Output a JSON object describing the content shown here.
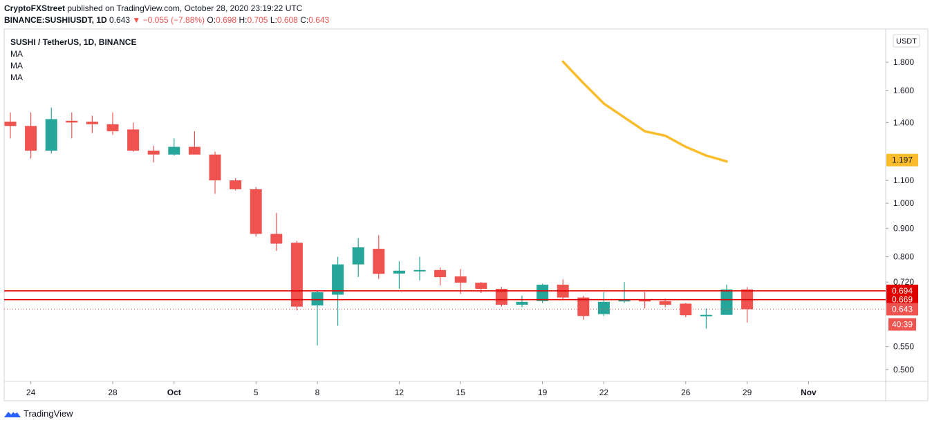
{
  "header": {
    "publisher": "CryptoFXStreet",
    "published_text": "published on TradingView.com, October 28, 2020 23:19:22 UTC",
    "symbol": "BINANCE:SUSHIUSDT, 1D",
    "last": "0.643",
    "arrow": "▼",
    "change": "−0.055 (−7.88%)",
    "o_label": "O:",
    "o_value": "0.698",
    "h_label": "H:",
    "h_value": "0.705",
    "l_label": "L:",
    "l_value": "0.608",
    "c_label": "C:",
    "c_value": "0.643"
  },
  "legend": {
    "title": "SUSHI / TetherUS, 1D, BINANCE",
    "indicators": [
      "MA",
      "MA",
      "MA"
    ]
  },
  "axis": {
    "currency_button": "USDT",
    "countdown": "40:39"
  },
  "footer": {
    "brand": "TradingView"
  },
  "colors": {
    "up": "#26a69a",
    "down": "#ef5350",
    "ma": "#fbbc2c",
    "resistance": "#e00000"
  },
  "chart_data": {
    "type": "candlestick",
    "y_scale": "log",
    "ylim": [
      0.48,
      2.02
    ],
    "y_ticks": [
      0.5,
      0.55,
      0.72,
      0.8,
      0.9,
      1.0,
      1.1,
      1.4,
      1.6,
      1.8
    ],
    "y_tick_labels": [
      "0.500",
      "0.550",
      "0.720",
      "0.800",
      "0.900",
      "1.000",
      "1.100",
      "1.400",
      "1.600",
      "1.800"
    ],
    "x_ticks": [
      {
        "date": "2020-09-24",
        "label": "24"
      },
      {
        "date": "2020-09-28",
        "label": "28"
      },
      {
        "date": "2020-10-01",
        "label": "Oct"
      },
      {
        "date": "2020-10-05",
        "label": "5"
      },
      {
        "date": "2020-10-08",
        "label": "8"
      },
      {
        "date": "2020-10-12",
        "label": "12"
      },
      {
        "date": "2020-10-15",
        "label": "15"
      },
      {
        "date": "2020-10-19",
        "label": "19"
      },
      {
        "date": "2020-10-22",
        "label": "22"
      },
      {
        "date": "2020-10-26",
        "label": "26"
      },
      {
        "date": "2020-10-29",
        "label": "29"
      },
      {
        "date": "2020-11-01",
        "label": "Nov"
      }
    ],
    "candles": [
      {
        "date": "2020-09-23",
        "o": 1.405,
        "h": 1.46,
        "l": 1.31,
        "c": 1.38
      },
      {
        "date": "2020-09-24",
        "o": 1.38,
        "h": 1.46,
        "l": 1.205,
        "c": 1.245
      },
      {
        "date": "2020-09-25",
        "o": 1.245,
        "h": 1.49,
        "l": 1.23,
        "c": 1.42
      },
      {
        "date": "2020-09-26",
        "o": 1.41,
        "h": 1.46,
        "l": 1.31,
        "c": 1.4
      },
      {
        "date": "2020-09-27",
        "o": 1.405,
        "h": 1.44,
        "l": 1.34,
        "c": 1.39
      },
      {
        "date": "2020-09-28",
        "o": 1.39,
        "h": 1.46,
        "l": 1.33,
        "c": 1.35
      },
      {
        "date": "2020-09-29",
        "o": 1.36,
        "h": 1.4,
        "l": 1.24,
        "c": 1.245
      },
      {
        "date": "2020-09-30",
        "o": 1.245,
        "h": 1.27,
        "l": 1.185,
        "c": 1.225
      },
      {
        "date": "2020-10-01",
        "o": 1.225,
        "h": 1.31,
        "l": 1.22,
        "c": 1.265
      },
      {
        "date": "2020-10-02",
        "o": 1.265,
        "h": 1.35,
        "l": 1.225,
        "c": 1.225
      },
      {
        "date": "2020-10-03",
        "o": 1.225,
        "h": 1.24,
        "l": 1.04,
        "c": 1.1
      },
      {
        "date": "2020-10-04",
        "o": 1.1,
        "h": 1.11,
        "l": 1.055,
        "c": 1.06
      },
      {
        "date": "2020-10-05",
        "o": 1.06,
        "h": 1.07,
        "l": 0.87,
        "c": 0.88
      },
      {
        "date": "2020-10-06",
        "o": 0.88,
        "h": 0.96,
        "l": 0.82,
        "c": 0.845
      },
      {
        "date": "2020-10-07",
        "o": 0.848,
        "h": 0.855,
        "l": 0.64,
        "c": 0.65
      },
      {
        "date": "2020-10-08",
        "o": 0.653,
        "h": 0.695,
        "l": 0.553,
        "c": 0.69
      },
      {
        "date": "2020-10-09",
        "o": 0.683,
        "h": 0.8,
        "l": 0.6,
        "c": 0.775
      },
      {
        "date": "2020-10-10",
        "o": 0.775,
        "h": 0.865,
        "l": 0.735,
        "c": 0.832
      },
      {
        "date": "2020-10-11",
        "o": 0.827,
        "h": 0.875,
        "l": 0.73,
        "c": 0.745
      },
      {
        "date": "2020-10-12",
        "o": 0.746,
        "h": 0.785,
        "l": 0.7,
        "c": 0.755
      },
      {
        "date": "2020-10-13",
        "o": 0.755,
        "h": 0.8,
        "l": 0.725,
        "c": 0.757
      },
      {
        "date": "2020-10-14",
        "o": 0.757,
        "h": 0.765,
        "l": 0.71,
        "c": 0.735
      },
      {
        "date": "2020-10-15",
        "o": 0.737,
        "h": 0.76,
        "l": 0.685,
        "c": 0.718
      },
      {
        "date": "2020-10-16",
        "o": 0.718,
        "h": 0.72,
        "l": 0.688,
        "c": 0.7
      },
      {
        "date": "2020-10-17",
        "o": 0.7,
        "h": 0.705,
        "l": 0.65,
        "c": 0.655
      },
      {
        "date": "2020-10-18",
        "o": 0.655,
        "h": 0.68,
        "l": 0.648,
        "c": 0.663
      },
      {
        "date": "2020-10-19",
        "o": 0.665,
        "h": 0.715,
        "l": 0.66,
        "c": 0.712
      },
      {
        "date": "2020-10-20",
        "o": 0.712,
        "h": 0.728,
        "l": 0.67,
        "c": 0.675
      },
      {
        "date": "2020-10-21",
        "o": 0.675,
        "h": 0.68,
        "l": 0.615,
        "c": 0.625
      },
      {
        "date": "2020-10-22",
        "o": 0.63,
        "h": 0.69,
        "l": 0.625,
        "c": 0.663
      },
      {
        "date": "2020-10-23",
        "o": 0.665,
        "h": 0.72,
        "l": 0.66,
        "c": 0.668
      },
      {
        "date": "2020-10-24",
        "o": 0.668,
        "h": 0.69,
        "l": 0.645,
        "c": 0.665
      },
      {
        "date": "2020-10-25",
        "o": 0.665,
        "h": 0.672,
        "l": 0.648,
        "c": 0.655
      },
      {
        "date": "2020-10-26",
        "o": 0.658,
        "h": 0.66,
        "l": 0.622,
        "c": 0.627
      },
      {
        "date": "2020-10-27",
        "o": 0.627,
        "h": 0.645,
        "l": 0.593,
        "c": 0.628
      },
      {
        "date": "2020-10-28",
        "o": 0.628,
        "h": 0.712,
        "l": 0.628,
        "c": 0.698
      },
      {
        "date": "2020-10-29",
        "o": 0.698,
        "h": 0.705,
        "l": 0.608,
        "c": 0.643
      }
    ],
    "moving_average": [
      {
        "date": "2020-10-20",
        "value": 1.805
      },
      {
        "date": "2020-10-21",
        "value": 1.65
      },
      {
        "date": "2020-10-22",
        "value": 1.515
      },
      {
        "date": "2020-10-23",
        "value": 1.43
      },
      {
        "date": "2020-10-24",
        "value": 1.35
      },
      {
        "date": "2020-10-25",
        "value": 1.325
      },
      {
        "date": "2020-10-26",
        "value": 1.265
      },
      {
        "date": "2020-10-27",
        "value": 1.22
      },
      {
        "date": "2020-10-28",
        "value": 1.19
      }
    ],
    "horizontal_lines": [
      {
        "value": 0.694,
        "label": "0.694"
      },
      {
        "value": 0.669,
        "label": "0.669"
      }
    ],
    "last_price_line": {
      "value": 0.643,
      "label": "0.643"
    },
    "ma_last": {
      "value": 1.197,
      "label": "1.197"
    }
  }
}
